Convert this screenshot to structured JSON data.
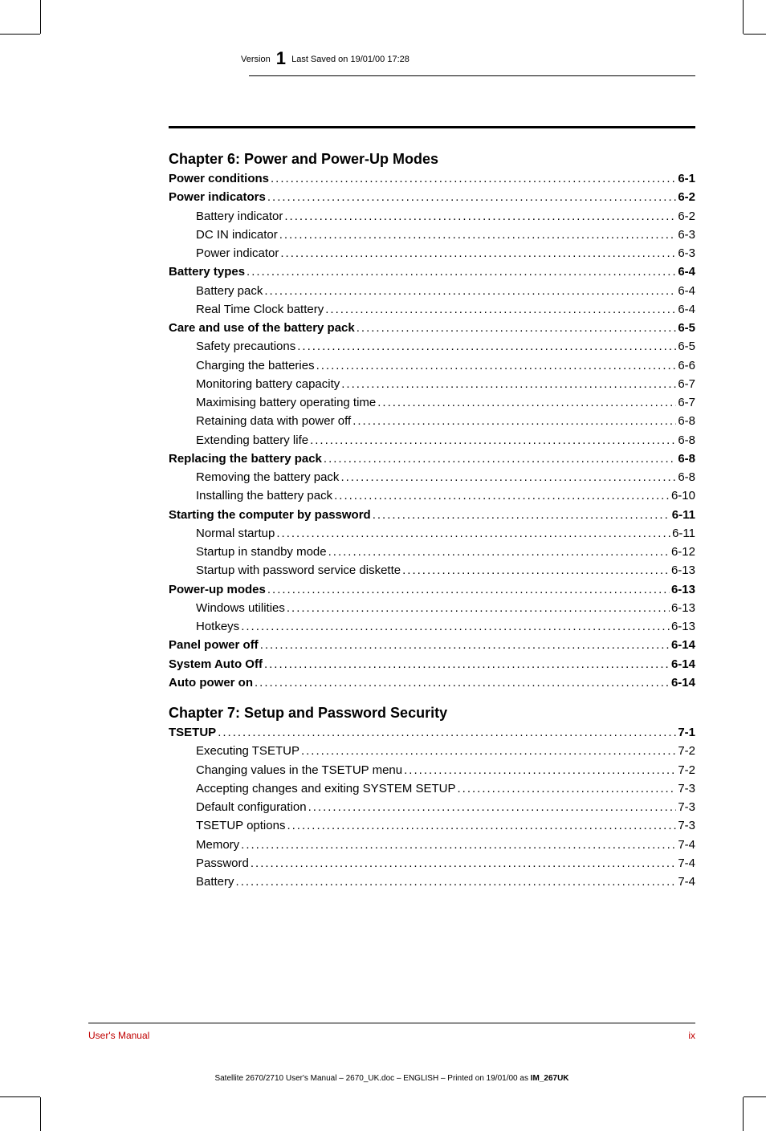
{
  "header": {
    "version_prefix": "Version",
    "version_number": "1",
    "saved_text": "Last Saved on 19/01/00 17:28"
  },
  "chapter6": {
    "title": "Chapter 6: Power and Power-Up Modes",
    "entries": [
      {
        "label": "Power conditions",
        "page": "6-1",
        "bold": true,
        "indent": false
      },
      {
        "label": "Power indicators",
        "page": "6-2",
        "bold": true,
        "indent": false
      },
      {
        "label": "Battery indicator",
        "page": "6-2",
        "bold": false,
        "indent": true
      },
      {
        "label": "DC IN indicator",
        "page": "6-3",
        "bold": false,
        "indent": true
      },
      {
        "label": "Power indicator",
        "page": "6-3",
        "bold": false,
        "indent": true
      },
      {
        "label": "Battery types",
        "page": "6-4",
        "bold": true,
        "indent": false
      },
      {
        "label": "Battery pack",
        "page": "6-4",
        "bold": false,
        "indent": true
      },
      {
        "label": "Real Time Clock battery",
        "page": "6-4",
        "bold": false,
        "indent": true
      },
      {
        "label": "Care and use of the battery pack",
        "page": "6-5",
        "bold": true,
        "indent": false
      },
      {
        "label": "Safety precautions",
        "page": "6-5",
        "bold": false,
        "indent": true
      },
      {
        "label": "Charging the batteries",
        "page": "6-6",
        "bold": false,
        "indent": true
      },
      {
        "label": "Monitoring battery capacity",
        "page": "6-7",
        "bold": false,
        "indent": true
      },
      {
        "label": "Maximising battery operating time",
        "page": "6-7",
        "bold": false,
        "indent": true
      },
      {
        "label": "Retaining data with power off",
        "page": "6-8",
        "bold": false,
        "indent": true
      },
      {
        "label": "Extending battery life",
        "page": "6-8",
        "bold": false,
        "indent": true
      },
      {
        "label": "Replacing the battery pack",
        "page": "6-8",
        "bold": true,
        "indent": false
      },
      {
        "label": "Removing the battery pack",
        "page": "6-8",
        "bold": false,
        "indent": true
      },
      {
        "label": "Installing the battery pack",
        "page": "6-10",
        "bold": false,
        "indent": true
      },
      {
        "label": "Starting the computer by password",
        "page": "6-11",
        "bold": true,
        "indent": false
      },
      {
        "label": "Normal startup",
        "page": "6-11",
        "bold": false,
        "indent": true
      },
      {
        "label": "Startup in standby mode",
        "page": "6-12",
        "bold": false,
        "indent": true
      },
      {
        "label": "Startup with password service diskette",
        "page": "6-13",
        "bold": false,
        "indent": true
      },
      {
        "label": "Power-up modes",
        "page": "6-13",
        "bold": true,
        "indent": false
      },
      {
        "label": "Windows utilities",
        "page": "6-13",
        "bold": false,
        "indent": true
      },
      {
        "label": "Hotkeys",
        "page": "6-13",
        "bold": false,
        "indent": true
      },
      {
        "label": "Panel power off",
        "page": "6-14",
        "bold": true,
        "indent": false
      },
      {
        "label": "System Auto Off",
        "page": "6-14",
        "bold": true,
        "indent": false
      },
      {
        "label": "Auto power on",
        "page": "6-14",
        "bold": true,
        "indent": false
      }
    ]
  },
  "chapter7": {
    "title": "Chapter 7: Setup and Password Security",
    "entries": [
      {
        "label": "TSETUP",
        "page": "7-1",
        "bold": true,
        "indent": false
      },
      {
        "label": "Executing TSETUP",
        "page": "7-2",
        "bold": false,
        "indent": true
      },
      {
        "label": "Changing values in the TSETUP menu",
        "page": "7-2",
        "bold": false,
        "indent": true
      },
      {
        "label": "Accepting changes and exiting SYSTEM SETUP",
        "page": "7-3",
        "bold": false,
        "indent": true
      },
      {
        "label": "Default configuration",
        "page": "7-3",
        "bold": false,
        "indent": true
      },
      {
        "label": "TSETUP options",
        "page": "7-3",
        "bold": false,
        "indent": true
      },
      {
        "label": "Memory",
        "page": "7-4",
        "bold": false,
        "indent": true
      },
      {
        "label": "Password",
        "page": "7-4",
        "bold": false,
        "indent": true
      },
      {
        "label": "Battery",
        "page": "7-4",
        "bold": false,
        "indent": true
      }
    ]
  },
  "footer": {
    "left": "User's Manual",
    "right": "ix"
  },
  "imprint": {
    "text_before": "Satellite 2670/2710 User's Manual  – 2670_UK.doc – ENGLISH – Printed on 19/01/00 as ",
    "code": "IM_267UK"
  }
}
